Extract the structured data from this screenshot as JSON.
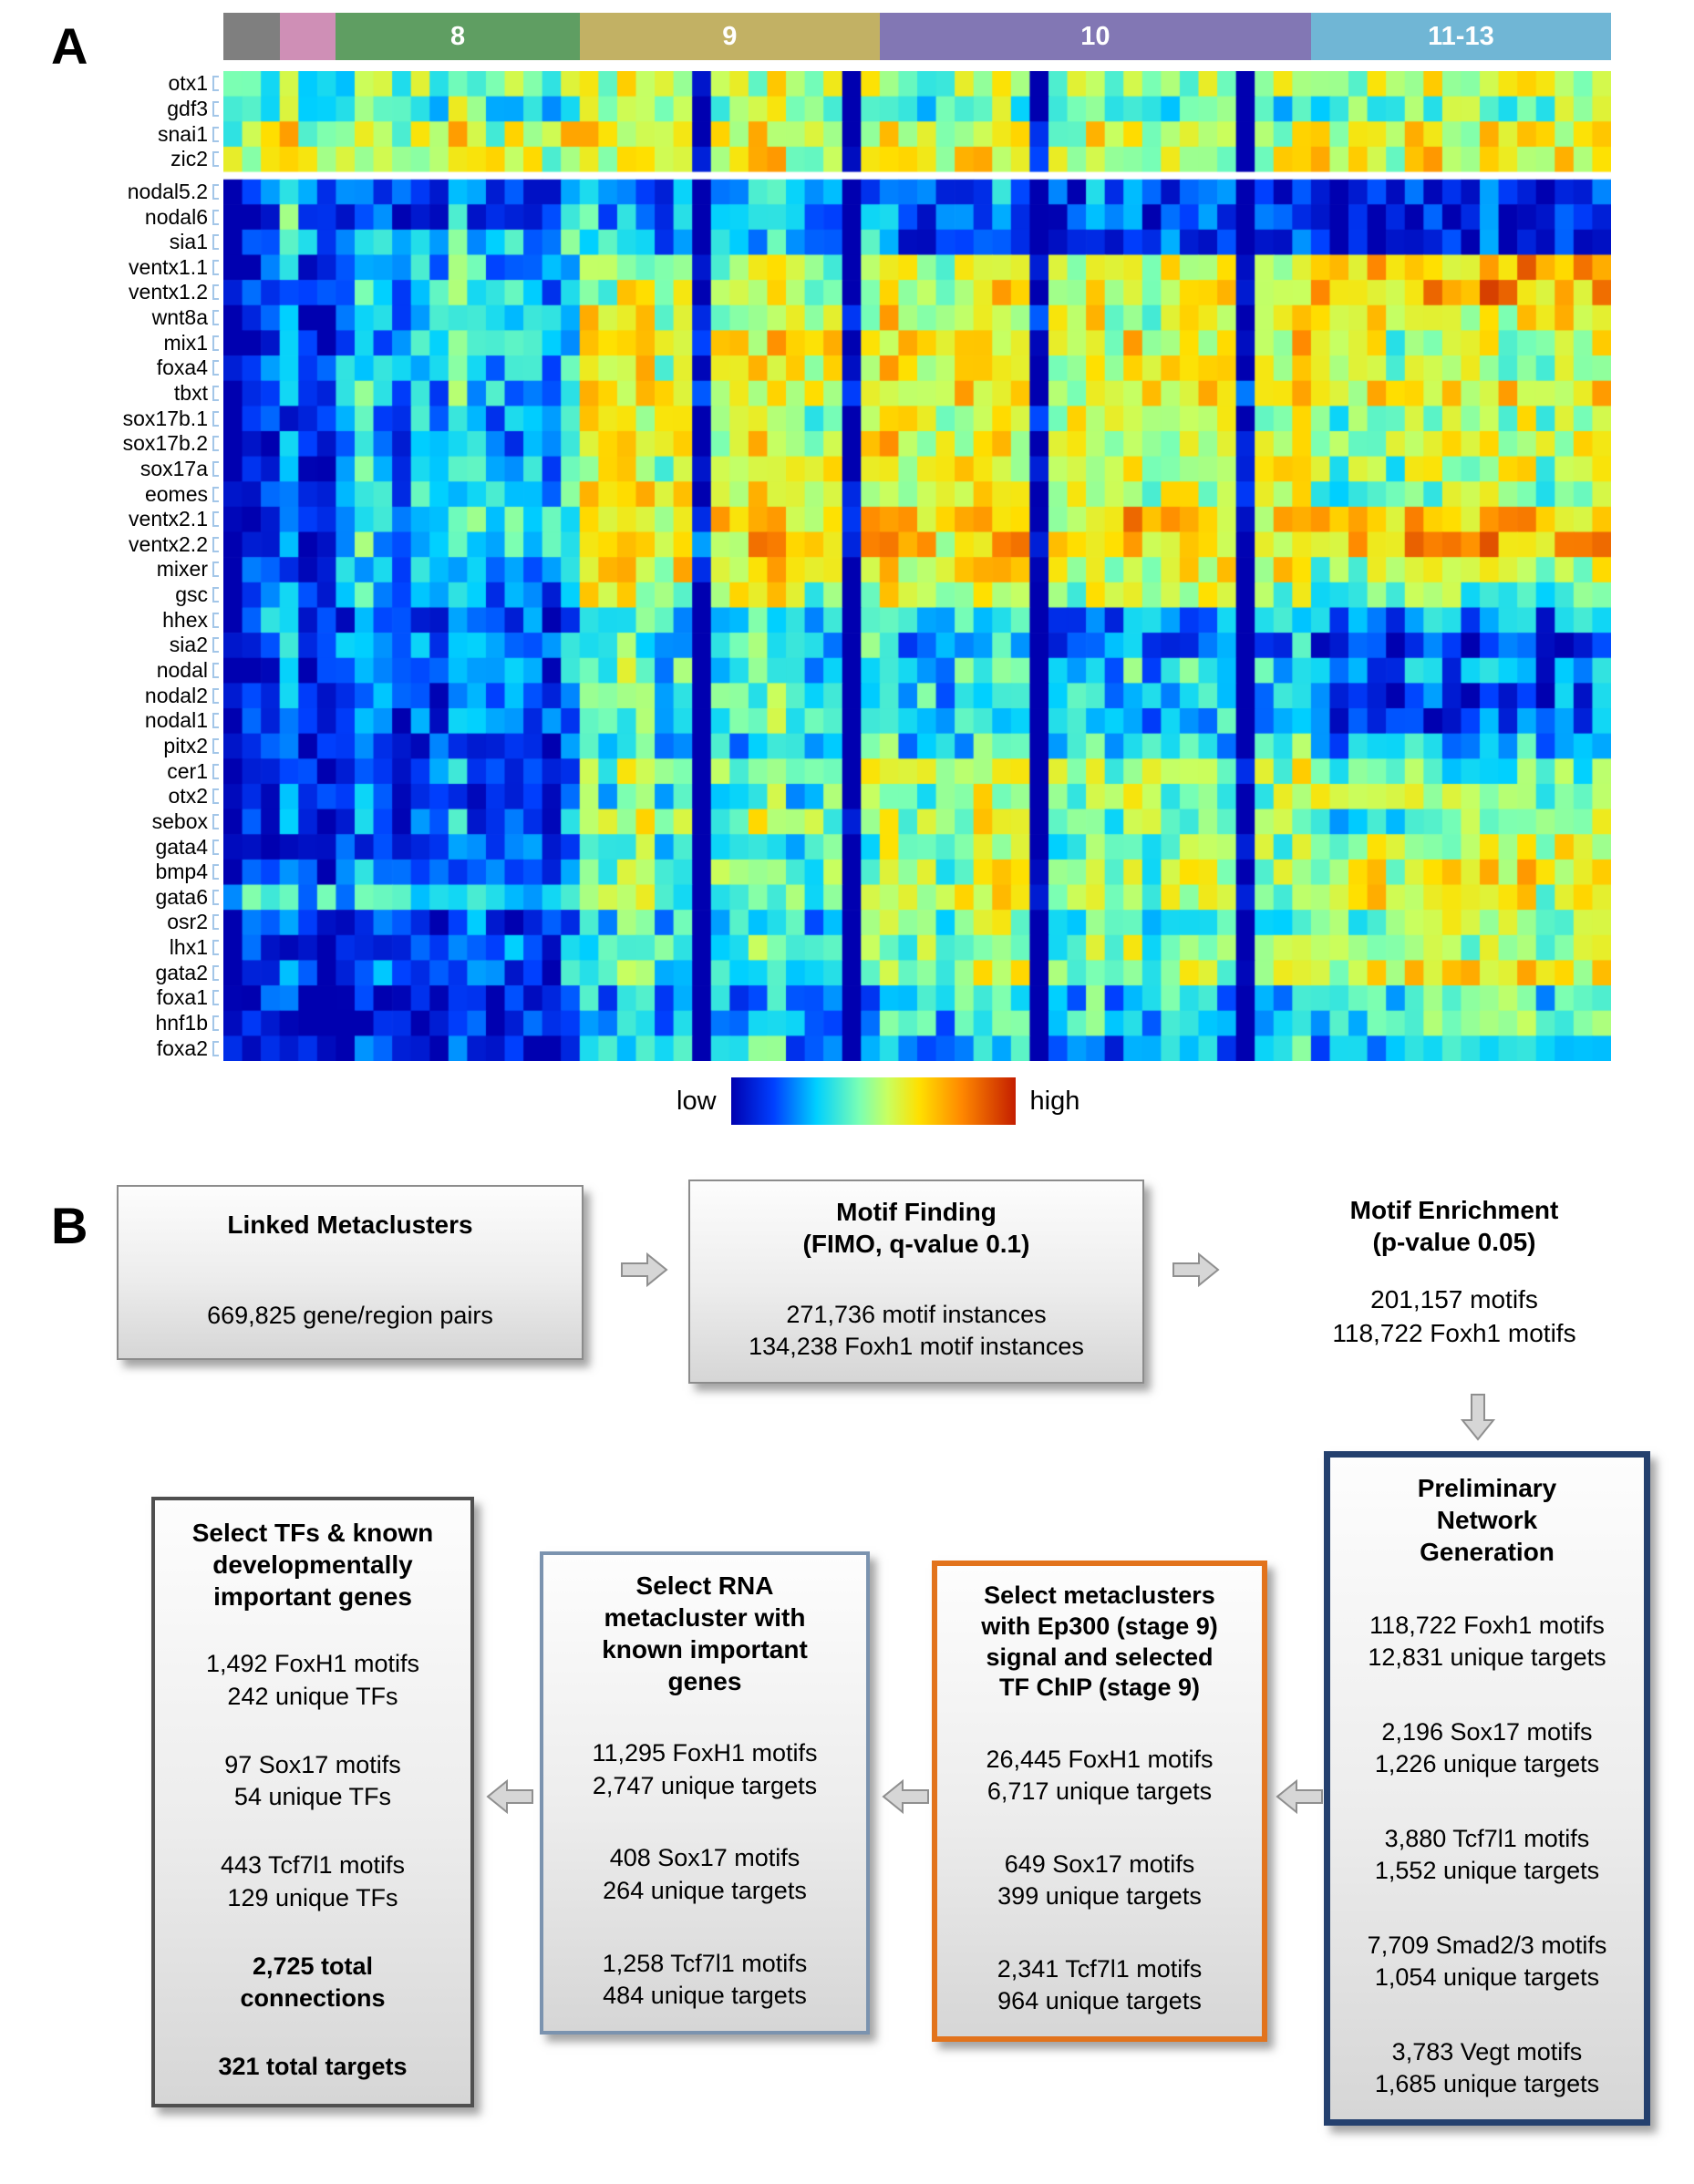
{
  "figure": {
    "panel_a_label": "A",
    "panel_b_label": "B"
  },
  "panelA": {
    "stage_groups": [
      {
        "label": "",
        "color": "#7f7f7f",
        "cols": 3
      },
      {
        "label": "",
        "color": "#cf8fb6",
        "cols": 3
      },
      {
        "label": "8",
        "color": "#5f9e62",
        "cols": 13
      },
      {
        "label": "9",
        "color": "#c2b164",
        "cols": 16
      },
      {
        "label": "10",
        "color": "#8277b4",
        "cols": 23
      },
      {
        "label": "11-13",
        "color": "#70b6d5",
        "cols": 16
      }
    ],
    "colorbar": {
      "low": "low",
      "high": "high"
    },
    "chart_data": {
      "type": "heatmap",
      "columns_total": 74,
      "column_groups": [
        "",
        "",
        "8",
        "9",
        "10",
        "11-13"
      ],
      "dark_columns": [
        25,
        33,
        43,
        54
      ],
      "estimated": true,
      "rows": [
        {
          "gene": "otx1",
          "profile": [
            0.4,
            0.45,
            0.45,
            0.5,
            0.5,
            0.55
          ]
        },
        {
          "gene": "gdf3",
          "profile": [
            0.4,
            0.45,
            0.4,
            0.45,
            0.4,
            0.45
          ]
        },
        {
          "gene": "snai1",
          "profile": [
            0.5,
            0.55,
            0.55,
            0.55,
            0.55,
            0.6
          ]
        },
        {
          "gene": "zic2",
          "profile": [
            0.55,
            0.58,
            0.58,
            0.58,
            0.58,
            0.62
          ]
        },
        {
          "gene": "nodal5.2",
          "profile": [
            0.05,
            0.25,
            0.15,
            0.22,
            0.15,
            0.05
          ]
        },
        {
          "gene": "nodal6",
          "profile": [
            0.05,
            0.28,
            0.18,
            0.25,
            0.18,
            0.05
          ]
        },
        {
          "gene": "sia1",
          "profile": [
            0.05,
            0.3,
            0.28,
            0.28,
            0.18,
            0.08
          ]
        },
        {
          "gene": "ventx1.1",
          "profile": [
            0.05,
            0.15,
            0.3,
            0.5,
            0.62,
            0.7
          ]
        },
        {
          "gene": "ventx1.2",
          "profile": [
            0.05,
            0.15,
            0.32,
            0.52,
            0.63,
            0.72
          ]
        },
        {
          "gene": "wnt8a",
          "profile": [
            0.05,
            0.15,
            0.33,
            0.55,
            0.58,
            0.58
          ]
        },
        {
          "gene": "mix1",
          "profile": [
            0.05,
            0.12,
            0.3,
            0.6,
            0.62,
            0.52
          ]
        },
        {
          "gene": "foxa4",
          "profile": [
            0.05,
            0.12,
            0.3,
            0.58,
            0.6,
            0.52
          ]
        },
        {
          "gene": "tbxt",
          "profile": [
            0.05,
            0.12,
            0.3,
            0.58,
            0.63,
            0.62
          ]
        },
        {
          "gene": "sox17b.1",
          "profile": [
            0.05,
            0.1,
            0.25,
            0.55,
            0.58,
            0.52
          ]
        },
        {
          "gene": "sox17b.2",
          "profile": [
            0.05,
            0.1,
            0.25,
            0.55,
            0.58,
            0.52
          ]
        },
        {
          "gene": "sox17a",
          "profile": [
            0.05,
            0.1,
            0.28,
            0.55,
            0.58,
            0.52
          ]
        },
        {
          "gene": "eomes",
          "profile": [
            0.05,
            0.1,
            0.28,
            0.55,
            0.55,
            0.45
          ]
        },
        {
          "gene": "ventx2.1",
          "profile": [
            0.05,
            0.12,
            0.35,
            0.65,
            0.68,
            0.68
          ]
        },
        {
          "gene": "ventx2.2",
          "profile": [
            0.05,
            0.12,
            0.35,
            0.65,
            0.68,
            0.72
          ]
        },
        {
          "gene": "mixer",
          "profile": [
            0.05,
            0.1,
            0.3,
            0.6,
            0.62,
            0.48
          ]
        },
        {
          "gene": "gsc",
          "profile": [
            0.05,
            0.1,
            0.25,
            0.52,
            0.52,
            0.42
          ]
        },
        {
          "gene": "hhex",
          "profile": [
            0.15,
            0.2,
            0.18,
            0.32,
            0.28,
            0.22
          ]
        },
        {
          "gene": "sia2",
          "profile": [
            0.05,
            0.3,
            0.22,
            0.33,
            0.22,
            0.08
          ]
        },
        {
          "gene": "nodal",
          "profile": [
            0.05,
            0.1,
            0.18,
            0.38,
            0.33,
            0.18
          ]
        },
        {
          "gene": "nodal2",
          "profile": [
            0.05,
            0.1,
            0.18,
            0.38,
            0.33,
            0.14
          ]
        },
        {
          "gene": "nodal1",
          "profile": [
            0.05,
            0.1,
            0.18,
            0.38,
            0.32,
            0.1
          ]
        },
        {
          "gene": "pitx2",
          "profile": [
            0.05,
            0.08,
            0.14,
            0.28,
            0.33,
            0.28
          ]
        },
        {
          "gene": "cer1",
          "profile": [
            0.05,
            0.1,
            0.18,
            0.48,
            0.52,
            0.38
          ]
        },
        {
          "gene": "otx2",
          "profile": [
            0.05,
            0.08,
            0.14,
            0.38,
            0.48,
            0.52
          ]
        },
        {
          "gene": "sebox",
          "profile": [
            0.05,
            0.08,
            0.18,
            0.48,
            0.52,
            0.43
          ]
        },
        {
          "gene": "gata4",
          "profile": [
            0.05,
            0.08,
            0.14,
            0.38,
            0.48,
            0.52
          ]
        },
        {
          "gene": "bmp4",
          "profile": [
            0.08,
            0.12,
            0.18,
            0.42,
            0.52,
            0.58
          ]
        },
        {
          "gene": "gata6",
          "profile": [
            0.32,
            0.38,
            0.33,
            0.43,
            0.52,
            0.58
          ]
        },
        {
          "gene": "osr2",
          "profile": [
            0.05,
            0.08,
            0.14,
            0.33,
            0.43,
            0.48
          ]
        },
        {
          "gene": "lhx1",
          "profile": [
            0.05,
            0.08,
            0.18,
            0.38,
            0.48,
            0.52
          ]
        },
        {
          "gene": "gata2",
          "profile": [
            0.08,
            0.12,
            0.18,
            0.38,
            0.52,
            0.62
          ]
        },
        {
          "gene": "foxa1",
          "profile": [
            0.04,
            0.05,
            0.08,
            0.22,
            0.33,
            0.38
          ]
        },
        {
          "gene": "hnf1b",
          "profile": [
            0.04,
            0.05,
            0.08,
            0.28,
            0.33,
            0.38
          ]
        },
        {
          "gene": "foxa2",
          "profile": [
            0.04,
            0.05,
            0.08,
            0.28,
            0.28,
            0.28
          ]
        }
      ]
    }
  },
  "panelB": {
    "linked": {
      "title": "Linked Metaclusters",
      "body": "669,825 gene/region pairs"
    },
    "finding": {
      "title": "Motif Finding",
      "subtitle": "(FIMO, q-value 0.1)",
      "body": "271,736 motif instances\n134,238 Foxh1 motif instances"
    },
    "enrichment": {
      "title": "Motif Enrichment",
      "subtitle": "(p-value 0.05)",
      "body": "201,157 motifs\n118,722 Foxh1 motifs"
    },
    "preliminary": {
      "title": "Preliminary\nNetwork\nGeneration",
      "stats": [
        [
          "118,722 Foxh1 motifs",
          "12,831 unique targets"
        ],
        [
          "2,196 Sox17 motifs",
          "1,226 unique targets"
        ],
        [
          "3,880 Tcf7l1 motifs",
          "1,552 unique targets"
        ],
        [
          "7,709 Smad2/3 motifs",
          "1,054 unique targets"
        ],
        [
          "3,783 Vegt motifs",
          "1,685 unique targets"
        ]
      ]
    },
    "ep300": {
      "title": "Select metaclusters\nwith Ep300 (stage 9)\nsignal and selected\nTF ChIP (stage 9)",
      "stats": [
        [
          "26,445 FoxH1 motifs",
          "6,717 unique targets"
        ],
        [
          "649 Sox17 motifs",
          "399 unique targets"
        ],
        [
          "2,341 Tcf7l1 motifs",
          "964 unique targets"
        ]
      ]
    },
    "rna": {
      "title": "Select RNA\nmetacluster with\nknown important\ngenes",
      "stats": [
        [
          "11,295 FoxH1 motifs",
          "2,747 unique targets"
        ],
        [
          "408 Sox17 motifs",
          "264 unique targets"
        ],
        [
          "1,258 Tcf7l1 motifs",
          "484 unique targets"
        ]
      ]
    },
    "tfs": {
      "title": "Select TFs & known\ndevelopmentally\nimportant genes",
      "stats": [
        [
          "1,492 FoxH1 motifs",
          "242 unique TFs"
        ],
        [
          "97 Sox17 motifs",
          "54 unique TFs"
        ],
        [
          "443 Tcf7l1 motifs",
          "129 unique TFs"
        ]
      ],
      "totals": [
        "2,725 total\nconnections",
        "321 total targets"
      ]
    }
  }
}
